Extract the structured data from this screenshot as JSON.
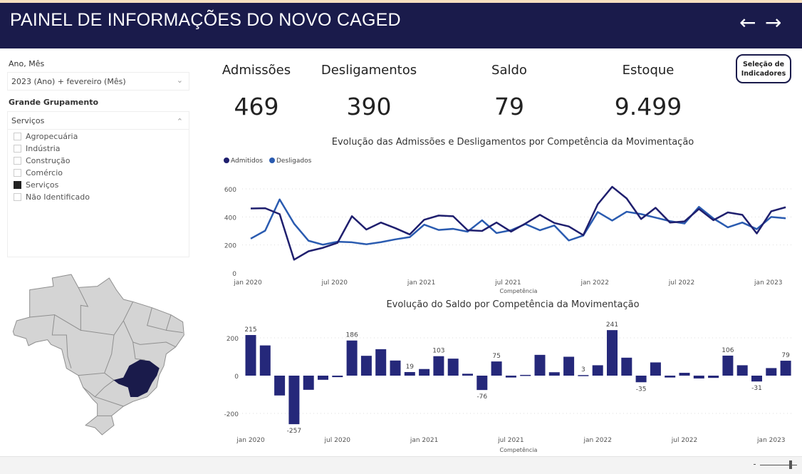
{
  "header": {
    "title": "PAINEL DE INFORMAÇÕES DO NOVO CAGED",
    "back_icon": "←",
    "forward_icon": "→"
  },
  "filters": {
    "period_label": "Ano, Mês",
    "period_value": "2023 (Ano) + fevereiro (Mês)",
    "group_label": "Grande Grupamento",
    "group_value": "Serviços",
    "group_options": [
      {
        "label": "Agropecuária",
        "checked": false
      },
      {
        "label": "Indústria",
        "checked": false
      },
      {
        "label": "Construção",
        "checked": false
      },
      {
        "label": "Comércio",
        "checked": false
      },
      {
        "label": "Serviços",
        "checked": true
      },
      {
        "label": "Não Identificado",
        "checked": false
      }
    ]
  },
  "kpis": [
    {
      "label": "Admissões",
      "value": "469"
    },
    {
      "label": "Desligamentos",
      "value": "390"
    },
    {
      "label": "Saldo",
      "value": "79"
    },
    {
      "label": "Estoque",
      "value": "9.499"
    }
  ],
  "select_indicators_button": "Seleção de Indicadores",
  "map": {
    "highlight_color": "#1a1b4b",
    "base_color": "#d4d4d4"
  },
  "colors": {
    "admitidos": "#1f1f6e",
    "desligados": "#2a5bb0",
    "bars": "#25287a"
  },
  "chart_data": [
    {
      "type": "line",
      "title": "Evolução das Admissões e Desligamentos por Competência da Movimentação",
      "xlabel": "Competência",
      "ylabel": "",
      "ylim": [
        0,
        600
      ],
      "yticks": [
        0,
        200,
        400,
        600
      ],
      "xticks": [
        {
          "i": 0,
          "label": "jan 2020"
        },
        {
          "i": 6,
          "label": "jul 2020"
        },
        {
          "i": 12,
          "label": "jan 2021"
        },
        {
          "i": 18,
          "label": "jul 2021"
        },
        {
          "i": 24,
          "label": "jan 2022"
        },
        {
          "i": 30,
          "label": "jul 2022"
        },
        {
          "i": 36,
          "label": "jan 2023"
        }
      ],
      "legend": "top-left",
      "series": [
        {
          "name": "Admitidos",
          "values": [
            460,
            462,
            420,
            95,
            155,
            180,
            215,
            405,
            310,
            360,
            320,
            275,
            380,
            410,
            405,
            305,
            300,
            360,
            295,
            353,
            415,
            357,
            332,
            270,
            490,
            615,
            532,
            385,
            465,
            360,
            368,
            457,
            377,
            432,
            415,
            282,
            440,
            469
          ]
        },
        {
          "name": "Desligados",
          "values": [
            245,
            302,
            525,
            352,
            230,
            202,
            223,
            219,
            205,
            220,
            240,
            256,
            345,
            307,
            315,
            295,
            376,
            285,
            305,
            349,
            305,
            339,
            232,
            267,
            435,
            374,
            437,
            420,
            395,
            370,
            353,
            472,
            389,
            326,
            360,
            313,
            400,
            390
          ]
        }
      ]
    },
    {
      "type": "bar",
      "title": "Evolução do Saldo por Competência da Movimentação",
      "xlabel": "Competência",
      "ylim": [
        -280,
        260
      ],
      "yticks": [
        -200,
        0,
        200
      ],
      "xticks": [
        {
          "i": 0,
          "label": "jan 2020"
        },
        {
          "i": 6,
          "label": "jul 2020"
        },
        {
          "i": 12,
          "label": "jan 2021"
        },
        {
          "i": 18,
          "label": "jul 2021"
        },
        {
          "i": 24,
          "label": "jan 2022"
        },
        {
          "i": 30,
          "label": "jul 2022"
        },
        {
          "i": 36,
          "label": "jan 2023"
        }
      ],
      "values": [
        215,
        160,
        -105,
        -257,
        -75,
        -22,
        -8,
        186,
        105,
        140,
        80,
        19,
        35,
        103,
        90,
        10,
        -76,
        75,
        -10,
        4,
        110,
        18,
        100,
        3,
        55,
        241,
        95,
        -35,
        70,
        -10,
        15,
        -15,
        -12,
        106,
        55,
        -31,
        40,
        79
      ],
      "labeled_indices": [
        0,
        3,
        7,
        11,
        13,
        16,
        17,
        23,
        25,
        27,
        33,
        35,
        37
      ]
    }
  ]
}
